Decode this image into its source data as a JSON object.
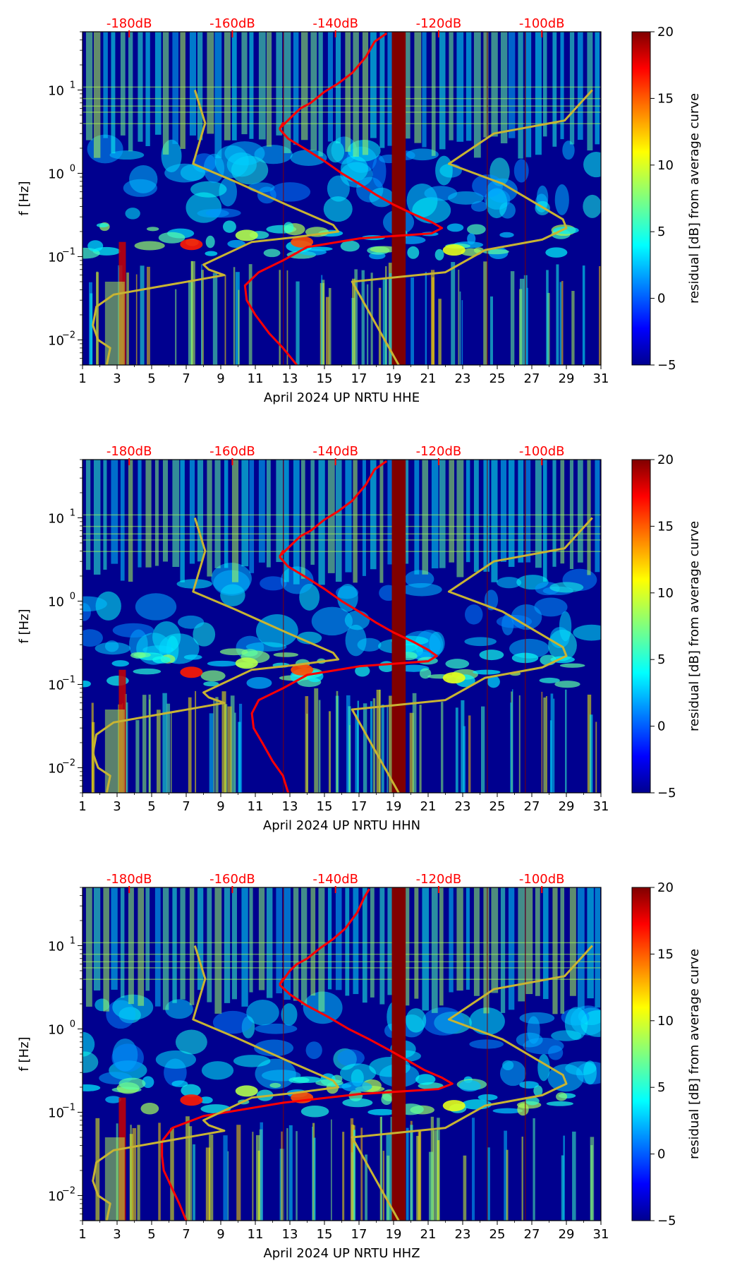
{
  "figure": {
    "shared": {
      "ylabel": "f [Hz]",
      "x_ticks": [
        1,
        3,
        5,
        7,
        9,
        11,
        13,
        15,
        17,
        19,
        21,
        23,
        25,
        27,
        29,
        31
      ],
      "x_tick_labels": [
        "1",
        "3",
        "5",
        "7",
        "9",
        "11",
        "13",
        "15",
        "17",
        "19",
        "21",
        "23",
        "25",
        "27",
        "29",
        "31"
      ],
      "y_ticks": [
        0.01,
        0.1,
        1,
        10
      ],
      "y_tick_labels": [
        {
          "base": "10",
          "exp": "−2"
        },
        {
          "base": "10",
          "exp": "−1"
        },
        {
          "base": "10",
          "exp": "0"
        },
        {
          "base": "10",
          "exp": "1"
        }
      ],
      "db_scale_labels": [
        "-180dB",
        "-160dB",
        "-140dB",
        "-120dB",
        "-100dB"
      ],
      "db_scale_values": [
        -180,
        -160,
        -140,
        -120,
        -100
      ],
      "colorbar": {
        "label": "residual [dB] from average curve",
        "min": -5,
        "max": 20,
        "ticks": [
          20,
          15,
          10,
          5,
          0,
          -5
        ],
        "tick_labels": [
          "20",
          "15",
          "10",
          "5",
          "0",
          "−5"
        ],
        "colormap": "jet"
      },
      "colors": {
        "red_curve": "#ff0000",
        "noise_model_curve": "#c8b432",
        "gap_band": "#800000",
        "background_low": "#00008f"
      }
    }
  },
  "chart_data": [
    {
      "type": "heatmap",
      "xlabel": "April 2024 UP NRTU  HHE",
      "ylabel": "f [Hz]",
      "x_range": [
        1,
        31
      ],
      "y_range": [
        0.005,
        50
      ],
      "y_scale": "log",
      "colorbar_range": [
        -5,
        20
      ],
      "colorbar_label": "residual [dB] from average curve",
      "data_gap_days": [
        18.9,
        19.7
      ],
      "series": [
        {
          "x": [
            12.4,
            12.6,
            12.5,
            13.2,
            13.6,
            14.2,
            15.0,
            15.8,
            16.6,
            17.4,
            17.9,
            18.6
          ],
          "y": [
            3.4,
            4.0,
            3.6,
            5.0,
            6.0,
            7.0,
            9.5,
            12.0,
            16.0,
            25.0,
            38.0,
            48.0
          ]
        },
        {
          "x": [
            12.4,
            12.9,
            14.0,
            15.0,
            16.0,
            17.0,
            18.0,
            19.0,
            20.2,
            21.2,
            21.8,
            21.2,
            17.0,
            14.0,
            12.6,
            11.2,
            10.4,
            10.5,
            11.0,
            11.8,
            12.6,
            13.4
          ],
          "y": [
            3.4,
            2.6,
            1.9,
            1.4,
            1.0,
            0.75,
            0.55,
            0.42,
            0.32,
            0.26,
            0.22,
            0.19,
            0.165,
            0.13,
            0.09,
            0.065,
            0.045,
            0.03,
            0.02,
            0.012,
            0.008,
            0.005
          ]
        },
        {
          "x": [
            7.5,
            8.1,
            7.4,
            9.8,
            12.8,
            15.5,
            15.8,
            13.2,
            10.8,
            8.0,
            8.3,
            9.2,
            5.8,
            2.8,
            1.8,
            1.6,
            1.9,
            2.6,
            2.4
          ],
          "y": [
            10.0,
            4.0,
            1.3,
            0.8,
            0.42,
            0.24,
            0.2,
            0.17,
            0.15,
            0.08,
            0.07,
            0.06,
            0.045,
            0.035,
            0.025,
            0.015,
            0.01,
            0.008,
            0.005
          ]
        },
        {
          "x": [
            30.5,
            28.9,
            24.8,
            22.2,
            25.3,
            28.8,
            29.0,
            27.6,
            24.3,
            22.0,
            16.6,
            19.3
          ],
          "y": [
            10.0,
            4.3,
            3.0,
            1.3,
            0.75,
            0.28,
            0.22,
            0.16,
            0.12,
            0.065,
            0.05,
            0.005
          ]
        }
      ]
    },
    {
      "type": "heatmap",
      "xlabel": "April 2024 UP NRTU  HHN",
      "ylabel": "f [Hz]",
      "x_range": [
        1,
        31
      ],
      "y_range": [
        0.005,
        50
      ],
      "y_scale": "log",
      "colorbar_range": [
        -5,
        20
      ],
      "colorbar_label": "residual [dB] from average curve",
      "data_gap_days": [
        18.9,
        19.7
      ],
      "series": [
        {
          "x": [
            12.4,
            12.6,
            12.5,
            13.2,
            13.6,
            14.2,
            15.0,
            15.8,
            16.6,
            17.4,
            17.9,
            18.6
          ],
          "y": [
            3.4,
            4.0,
            3.6,
            5.0,
            6.0,
            7.0,
            9.5,
            12.0,
            16.0,
            25.0,
            38.0,
            48.0
          ]
        },
        {
          "x": [
            12.4,
            12.9,
            14.0,
            15.0,
            16.0,
            17.0,
            18.0,
            19.0,
            20.2,
            21.0,
            21.5,
            21.0,
            17.0,
            14.0,
            12.6,
            11.2,
            10.8,
            10.9,
            11.4,
            12.0,
            12.6,
            12.9
          ],
          "y": [
            3.4,
            2.6,
            1.9,
            1.4,
            1.0,
            0.75,
            0.55,
            0.42,
            0.32,
            0.26,
            0.22,
            0.19,
            0.165,
            0.13,
            0.09,
            0.065,
            0.045,
            0.03,
            0.02,
            0.012,
            0.008,
            0.005
          ]
        },
        {
          "x": [
            7.5,
            8.1,
            7.4,
            9.8,
            12.8,
            15.5,
            15.8,
            13.2,
            10.8,
            8.0,
            8.3,
            9.2,
            5.8,
            2.8,
            1.8,
            1.6,
            1.9,
            2.6,
            2.4
          ],
          "y": [
            10.0,
            4.0,
            1.3,
            0.8,
            0.42,
            0.24,
            0.2,
            0.17,
            0.15,
            0.08,
            0.07,
            0.06,
            0.045,
            0.035,
            0.025,
            0.015,
            0.01,
            0.008,
            0.005
          ]
        },
        {
          "x": [
            30.5,
            28.9,
            24.8,
            22.2,
            25.3,
            28.8,
            29.0,
            27.6,
            24.3,
            22.0,
            16.6,
            19.3
          ],
          "y": [
            10.0,
            4.3,
            3.0,
            1.3,
            0.75,
            0.28,
            0.22,
            0.16,
            0.12,
            0.065,
            0.05,
            0.005
          ]
        }
      ]
    },
    {
      "type": "heatmap",
      "xlabel": "April 2024 UP NRTU  HHZ",
      "ylabel": "f [Hz]",
      "x_range": [
        1,
        31
      ],
      "y_range": [
        0.005,
        50
      ],
      "y_scale": "log",
      "colorbar_range": [
        -5,
        20
      ],
      "colorbar_label": "residual [dB] from average curve",
      "data_gap_days": [
        18.9,
        19.7
      ],
      "series": [
        {
          "x": [
            12.4,
            12.6,
            12.5,
            13.0,
            13.4,
            14.0,
            14.8,
            15.5,
            16.2,
            16.9,
            17.3,
            17.6
          ],
          "y": [
            3.4,
            4.0,
            3.6,
            5.0,
            6.0,
            7.0,
            9.5,
            12.0,
            16.0,
            25.0,
            38.0,
            48.0
          ]
        },
        {
          "x": [
            12.4,
            13.0,
            14.0,
            15.2,
            16.4,
            17.6,
            18.8,
            19.8,
            20.8,
            21.8,
            22.4,
            21.6,
            17.0,
            12.6,
            8.0,
            6.2,
            5.6,
            5.6,
            5.7,
            6.2,
            6.6,
            7.0
          ],
          "y": [
            3.4,
            2.6,
            1.9,
            1.4,
            1.0,
            0.75,
            0.55,
            0.42,
            0.32,
            0.26,
            0.22,
            0.19,
            0.165,
            0.13,
            0.09,
            0.065,
            0.045,
            0.03,
            0.02,
            0.012,
            0.008,
            0.005
          ]
        },
        {
          "x": [
            7.5,
            8.1,
            7.4,
            9.8,
            12.8,
            15.5,
            15.8,
            13.2,
            10.8,
            8.0,
            8.3,
            9.2,
            5.8,
            2.8,
            1.8,
            1.6,
            1.9,
            2.6,
            2.4
          ],
          "y": [
            10.0,
            4.0,
            1.3,
            0.8,
            0.42,
            0.24,
            0.2,
            0.17,
            0.15,
            0.08,
            0.07,
            0.06,
            0.045,
            0.035,
            0.025,
            0.015,
            0.01,
            0.008,
            0.005
          ]
        },
        {
          "x": [
            30.5,
            28.9,
            24.8,
            22.2,
            25.3,
            28.8,
            29.0,
            27.6,
            24.3,
            22.0,
            16.6,
            19.3
          ],
          "y": [
            10.0,
            4.3,
            3.0,
            1.3,
            0.75,
            0.28,
            0.22,
            0.16,
            0.12,
            0.065,
            0.05,
            0.005
          ]
        }
      ]
    }
  ]
}
